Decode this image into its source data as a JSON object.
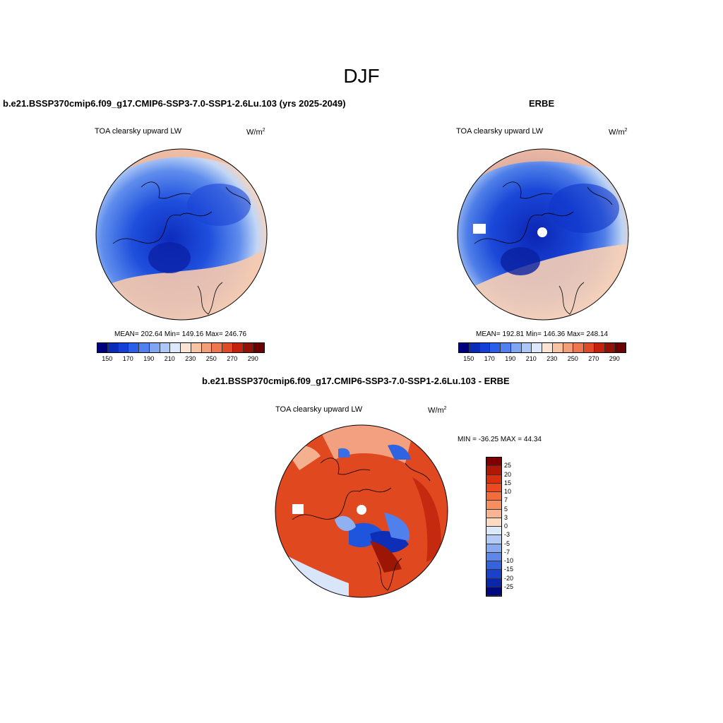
{
  "title": "DJF",
  "panels": {
    "model": {
      "title": "b.e21.BSSP370cmip6.f09_g17.CMIP6-SSP3-7.0-SSP1-2.6Lu.103 (yrs 2025-2049)",
      "variable": "TOA clearsky upward LW",
      "units": "W/m",
      "units_exp": "2",
      "stats": "MEAN= 202.64  Min= 149.16  Max= 246.76"
    },
    "obs": {
      "title": "ERBE",
      "variable": "TOA clearsky upward LW",
      "units": "W/m",
      "units_exp": "2",
      "stats": "MEAN= 192.81  Min= 146.36  Max= 248.14"
    },
    "diff": {
      "title": "b.e21.BSSP370cmip6.f09_g17.CMIP6-SSP3-7.0-SSP1-2.6Lu.103 - ERBE",
      "variable": "TOA clearsky upward LW",
      "units": "W/m",
      "units_exp": "2",
      "stats": "MIN = -36.25 MAX =  44.34"
    }
  },
  "colorbar_abs": {
    "colors": [
      "#00007f",
      "#0a2ab8",
      "#1440d8",
      "#2a60e8",
      "#4f82f0",
      "#7fa6f5",
      "#adc8f8",
      "#dce8fb",
      "#fbe4d2",
      "#f8c3a4",
      "#f49e79",
      "#ee774f",
      "#e04a26",
      "#c4210e",
      "#951005",
      "#6a0000"
    ],
    "ticks": [
      "150",
      "170",
      "190",
      "210",
      "230",
      "250",
      "270",
      "290"
    ]
  },
  "colorbar_diff": {
    "colors": [
      "#7f0000",
      "#b01806",
      "#d8300e",
      "#ec4a1e",
      "#f26c3c",
      "#f58f60",
      "#f8b493",
      "#fbdcc3",
      "#dde9fb",
      "#b3cbf5",
      "#8aaaf0",
      "#5f87e8",
      "#3563dd",
      "#1a40cc",
      "#0a26aa",
      "#000a7e"
    ],
    "ticks": [
      "25",
      "20",
      "15",
      "10",
      "7",
      "5",
      "3",
      "0",
      "-3",
      "-5",
      "-7",
      "-10",
      "-15",
      "-20",
      "-25"
    ]
  }
}
